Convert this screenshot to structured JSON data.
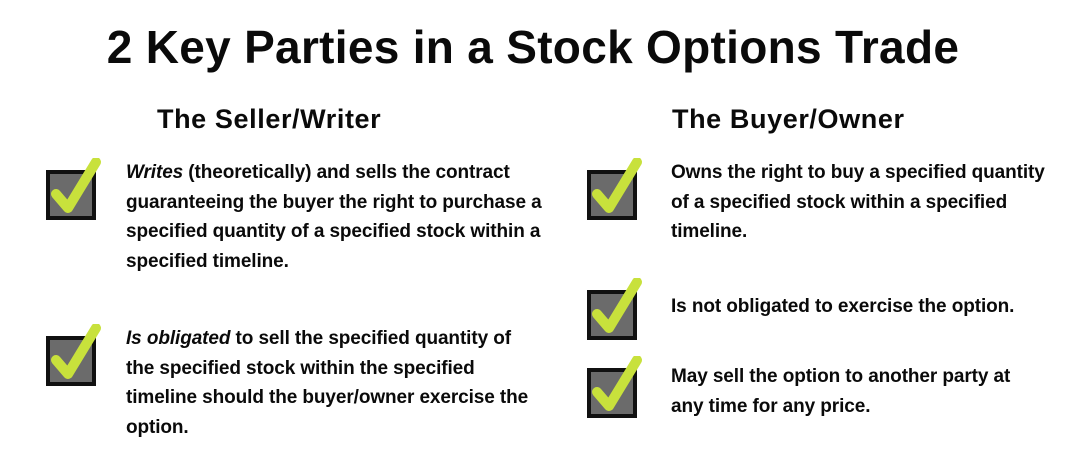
{
  "title": "2 Key Parties in a Stock Options Trade",
  "icon": {
    "name": "checkbox-check-icon",
    "box_fill": "#6b6b6b",
    "box_stroke": "#111111",
    "check_color": "#c8e13c"
  },
  "seller": {
    "heading": "The Seller/Writer",
    "items": [
      {
        "emphasis": "Writes",
        "text": " (theoretically) and sells the contract guaranteeing the buyer the right to purchase a specified quantity of a specified stock within a specified timeline."
      },
      {
        "emphasis": "Is obligated",
        "text": " to sell the specified quantity of the specified stock within the specified timeline should the buyer/owner exercise the option."
      }
    ]
  },
  "buyer": {
    "heading": "The Buyer/Owner",
    "items": [
      {
        "text": "Owns the right to buy a specified quantity of a specified stock within a specified timeline."
      },
      {
        "text": "Is not obligated to exercise the option."
      },
      {
        "text": "May sell the option to another party at any time for any price."
      }
    ]
  }
}
